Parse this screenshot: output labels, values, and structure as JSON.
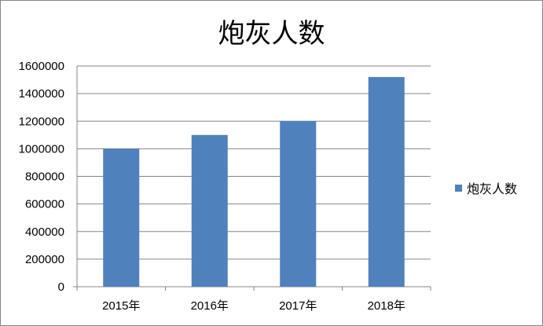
{
  "chart_data": {
    "type": "bar",
    "title": "炮灰人数",
    "categories": [
      "2015年",
      "2016年",
      "2017年",
      "2018年"
    ],
    "series": [
      {
        "name": "炮灰人数",
        "values": [
          1000000,
          1100000,
          1200000,
          1520000
        ],
        "color": "#4f81bd"
      }
    ],
    "ylim": [
      0,
      1600000
    ],
    "yticks": [
      0,
      200000,
      400000,
      600000,
      800000,
      1000000,
      1200000,
      1400000,
      1600000
    ],
    "grid": true,
    "legend": "right"
  }
}
